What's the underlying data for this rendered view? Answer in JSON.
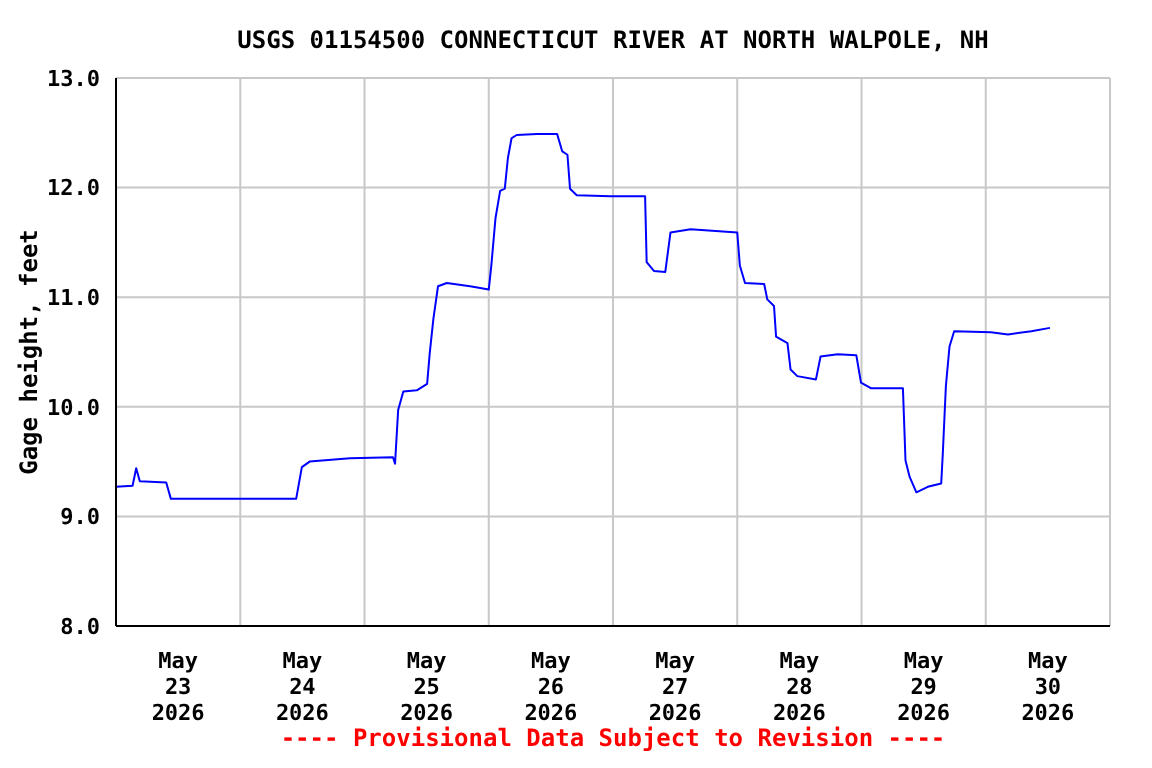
{
  "chart_data": {
    "type": "line",
    "title": "USGS 01154500 CONNECTICUT RIVER AT NORTH WALPOLE, NH",
    "ylabel": "Gage height, feet",
    "annotations": [
      "---- Provisional Data Subject to Revision ----"
    ],
    "x": [
      "2026-05-23T00:00",
      "2026-05-23T03:12",
      "2026-05-23T03:54",
      "2026-05-23T04:36",
      "2026-05-23T09:42",
      "2026-05-23T10:36",
      "2026-05-23T18:00",
      "2026-05-24T10:48",
      "2026-05-24T11:54",
      "2026-05-24T13:24",
      "2026-05-24T21:12",
      "2026-05-25T05:30",
      "2026-05-25T05:54",
      "2026-05-25T06:30",
      "2026-05-25T07:30",
      "2026-05-25T10:06",
      "2026-05-25T12:06",
      "2026-05-25T12:36",
      "2026-05-25T13:18",
      "2026-05-25T14:12",
      "2026-05-25T15:54",
      "2026-05-25T20:24",
      "2026-05-26T00:00",
      "2026-05-26T00:30",
      "2026-05-26T01:18",
      "2026-05-26T02:12",
      "2026-05-26T03:06",
      "2026-05-26T03:42",
      "2026-05-26T04:24",
      "2026-05-26T05:24",
      "2026-05-26T09:18",
      "2026-05-26T13:12",
      "2026-05-26T14:12",
      "2026-05-26T15:12",
      "2026-05-26T15:42",
      "2026-05-26T17:00",
      "2026-05-26T23:30",
      "2026-05-27T06:12",
      "2026-05-27T06:30",
      "2026-05-27T07:54",
      "2026-05-27T10:06",
      "2026-05-27T11:06",
      "2026-05-27T15:00",
      "2026-05-28T00:00",
      "2026-05-28T00:30",
      "2026-05-28T01:30",
      "2026-05-28T05:12",
      "2026-05-28T05:48",
      "2026-05-28T07:06",
      "2026-05-28T07:30",
      "2026-05-28T09:42",
      "2026-05-28T10:18",
      "2026-05-28T11:36",
      "2026-05-28T15:12",
      "2026-05-28T16:06",
      "2026-05-28T19:24",
      "2026-05-28T23:00",
      "2026-05-28T23:54",
      "2026-05-29T01:48",
      "2026-05-29T08:00",
      "2026-05-29T08:30",
      "2026-05-29T09:18",
      "2026-05-29T10:36",
      "2026-05-29T12:48",
      "2026-05-29T15:24",
      "2026-05-29T15:42",
      "2026-05-29T16:18",
      "2026-05-29T17:00",
      "2026-05-29T17:54",
      "2026-05-30T01:00",
      "2026-05-30T04:18",
      "2026-05-30T08:48",
      "2026-05-30T12:24"
    ],
    "series": [
      {
        "color": "#0000ff",
        "values": [
          9.27,
          9.28,
          9.44,
          9.32,
          9.31,
          9.16,
          9.16,
          9.16,
          9.45,
          9.5,
          9.53,
          9.54,
          9.48,
          9.97,
          10.14,
          10.15,
          10.21,
          10.49,
          10.8,
          11.1,
          11.13,
          11.1,
          11.07,
          11.29,
          11.72,
          11.97,
          11.99,
          12.27,
          12.45,
          12.48,
          12.49,
          12.49,
          12.33,
          12.3,
          11.99,
          11.93,
          11.92,
          11.92,
          11.32,
          11.24,
          11.23,
          11.59,
          11.62,
          11.59,
          11.29,
          11.13,
          11.12,
          10.98,
          10.92,
          10.64,
          10.58,
          10.34,
          10.28,
          10.25,
          10.46,
          10.48,
          10.47,
          10.22,
          10.17,
          10.17,
          9.51,
          9.36,
          9.22,
          9.27,
          9.3,
          9.57,
          10.19,
          10.55,
          10.69,
          10.68,
          10.66,
          10.69,
          10.72
        ]
      }
    ],
    "xlim": [
      "2026-05-23T00:00",
      "2026-05-31T00:00"
    ],
    "xticks": [
      {
        "value": "2026-05-23T00:00",
        "label": null
      },
      {
        "value": "2026-05-23T12:00",
        "label": "May 23 2026"
      },
      {
        "value": "2026-05-24T00:00",
        "label": null
      },
      {
        "value": "2026-05-24T12:00",
        "label": "May 24 2026"
      },
      {
        "value": "2026-05-25T00:00",
        "label": null
      },
      {
        "value": "2026-05-25T12:00",
        "label": "May 25 2026"
      },
      {
        "value": "2026-05-26T00:00",
        "label": null
      },
      {
        "value": "2026-05-26T12:00",
        "label": "May 26 2026"
      },
      {
        "value": "2026-05-27T00:00",
        "label": null
      },
      {
        "value": "2026-05-27T12:00",
        "label": "May 27 2026"
      },
      {
        "value": "2026-05-28T00:00",
        "label": null
      },
      {
        "value": "2026-05-28T12:00",
        "label": "May 28 2026"
      },
      {
        "value": "2026-05-29T00:00",
        "label": null
      },
      {
        "value": "2026-05-29T12:00",
        "label": "May 29 2026"
      },
      {
        "value": "2026-05-30T00:00",
        "label": null
      },
      {
        "value": "2026-05-30T12:00",
        "label": "May 30 2026"
      },
      {
        "value": "2026-05-31T00:00",
        "label": null
      }
    ],
    "ylim": [
      8,
      13
    ],
    "yticks": [
      {
        "value": 8,
        "label": "8.0"
      },
      {
        "value": 9,
        "label": "9.0"
      },
      {
        "value": 10,
        "label": "10.0"
      },
      {
        "value": 11,
        "label": "11.0"
      },
      {
        "value": 12,
        "label": "12.0"
      },
      {
        "value": 13,
        "label": "13.0"
      }
    ],
    "grid": true,
    "marker": "none",
    "line_style": "solid"
  }
}
